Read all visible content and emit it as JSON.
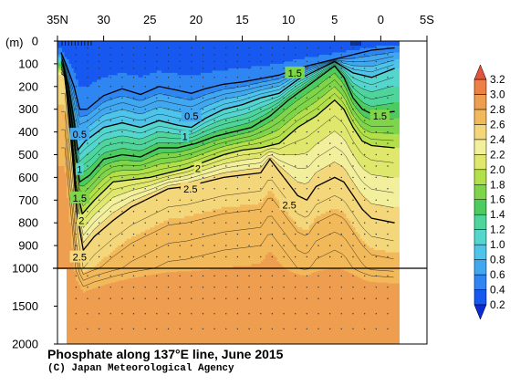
{
  "title": "Phosphate along 137°E line, June 2015",
  "credit": "(C) Japan Meteorological Agency",
  "depth_unit_label": "(m)",
  "colors": {
    "levels": [
      "#0a2ad2",
      "#1758f0",
      "#2f86f2",
      "#41a7f0",
      "#4fc4ea",
      "#54d6cf",
      "#4fd59c",
      "#4ccb5f",
      "#7fd54a",
      "#b3e04a",
      "#dfe86c",
      "#f2ef9d",
      "#f3d77a",
      "#f2b95b",
      "#ee9e4f",
      "#ec8045",
      "#e8683c",
      "#e4523a"
    ],
    "missing": "#ffffff"
  },
  "chart_data": {
    "type": "contour-section",
    "x_axis": {
      "ticks": [
        {
          "lat": 35,
          "label": "35N"
        },
        {
          "lat": 30,
          "label": "30"
        },
        {
          "lat": 25,
          "label": "25"
        },
        {
          "lat": 20,
          "label": "20"
        },
        {
          "lat": 15,
          "label": "15"
        },
        {
          "lat": 10,
          "label": "10"
        },
        {
          "lat": 5,
          "label": "5"
        },
        {
          "lat": 0,
          "label": "0"
        },
        {
          "lat": -5,
          "label": "5S"
        }
      ],
      "range_lat": [
        35,
        -5
      ]
    },
    "y_axis": {
      "upper_ticks": [
        {
          "depth": 0,
          "label": "0"
        },
        {
          "depth": 100,
          "label": "100"
        },
        {
          "depth": 200,
          "label": "200"
        },
        {
          "depth": 300,
          "label": "300"
        },
        {
          "depth": 400,
          "label": "400"
        },
        {
          "depth": 500,
          "label": "500"
        },
        {
          "depth": 600,
          "label": "600"
        },
        {
          "depth": 700,
          "label": "700"
        },
        {
          "depth": 800,
          "label": "800"
        },
        {
          "depth": 900,
          "label": "900"
        },
        {
          "depth": 1000,
          "label": "1000"
        }
      ],
      "lower_ticks": [
        {
          "depth": 1500,
          "label": "1500"
        },
        {
          "depth": 2000,
          "label": "2000"
        }
      ],
      "upper_range": [
        0,
        1000
      ],
      "lower_range": [
        1000,
        2000
      ]
    },
    "colorbar": {
      "labels": [
        "0.2",
        "0.4",
        "0.6",
        "0.8",
        "1.0",
        "1.2",
        "1.4",
        "1.6",
        "1.8",
        "2.0",
        "2.2",
        "2.4",
        "2.6",
        "2.8",
        "3.0",
        "3.2"
      ],
      "min": 0.2,
      "max": 3.2,
      "step": 0.2
    },
    "contour_labels": [
      {
        "text": "1.5",
        "lat": 9.3,
        "depth": 140
      },
      {
        "text": "1.5",
        "lat": 0.1,
        "depth": 330
      },
      {
        "text": "0.5",
        "lat": 20.5,
        "depth": 330
      },
      {
        "text": "1",
        "lat": 21.2,
        "depth": 420
      },
      {
        "text": "0.5",
        "lat": 32.6,
        "depth": 410
      },
      {
        "text": "1",
        "lat": 32.6,
        "depth": 565
      },
      {
        "text": "1.5",
        "lat": 32.6,
        "depth": 690
      },
      {
        "text": "2",
        "lat": 32.4,
        "depth": 790
      },
      {
        "text": "2.5",
        "lat": 32.6,
        "depth": 950
      },
      {
        "text": "2",
        "lat": 19.8,
        "depth": 560
      },
      {
        "text": "2.5",
        "lat": 20.6,
        "depth": 650
      },
      {
        "text": "2.5",
        "lat": 9.9,
        "depth": 720
      }
    ],
    "isolines": [
      {
        "value": 0.5,
        "points": [
          [
            34.6,
            50
          ],
          [
            34,
            110
          ],
          [
            33.2,
            200
          ],
          [
            32.6,
            300
          ],
          [
            31.8,
            300
          ],
          [
            30,
            240
          ],
          [
            28,
            210
          ],
          [
            26,
            235
          ],
          [
            24,
            200
          ],
          [
            22.2,
            215
          ],
          [
            20.5,
            230
          ],
          [
            19,
            210
          ],
          [
            17,
            190
          ],
          [
            15,
            180
          ],
          [
            13,
            165
          ],
          [
            11,
            150
          ],
          [
            9,
            120
          ],
          [
            7,
            100
          ],
          [
            5,
            80
          ],
          [
            3,
            60
          ],
          [
            1,
            40
          ],
          [
            -1.5,
            30
          ]
        ]
      },
      {
        "value": 1.0,
        "points": [
          [
            34.5,
            80
          ],
          [
            33.8,
            200
          ],
          [
            33.2,
            350
          ],
          [
            32.8,
            480
          ],
          [
            32,
            440
          ],
          [
            30,
            380
          ],
          [
            28,
            360
          ],
          [
            26,
            380
          ],
          [
            24,
            350
          ],
          [
            22,
            370
          ],
          [
            20.5,
            380
          ],
          [
            19,
            340
          ],
          [
            17,
            300
          ],
          [
            15,
            280
          ],
          [
            13,
            250
          ],
          [
            11,
            230
          ],
          [
            9,
            170
          ],
          [
            7,
            130
          ],
          [
            5,
            90
          ],
          [
            3,
            140
          ],
          [
            1,
            160
          ],
          [
            -1.5,
            120
          ]
        ]
      },
      {
        "value": 1.5,
        "points": [
          [
            34.4,
            100
          ],
          [
            33.6,
            300
          ],
          [
            33,
            500
          ],
          [
            32.6,
            620
          ],
          [
            31.5,
            590
          ],
          [
            30,
            520
          ],
          [
            28,
            500
          ],
          [
            26,
            510
          ],
          [
            24,
            470
          ],
          [
            22,
            470
          ],
          [
            20,
            450
          ],
          [
            18,
            420
          ],
          [
            16,
            400
          ],
          [
            14,
            380
          ],
          [
            12,
            330
          ],
          [
            10,
            260
          ],
          [
            8,
            200
          ],
          [
            6,
            140
          ],
          [
            5,
            110
          ],
          [
            4,
            160
          ],
          [
            3,
            250
          ],
          [
            2,
            300
          ],
          [
            1,
            320
          ],
          [
            -1.5,
            310
          ]
        ]
      },
      {
        "value": 2.0,
        "points": [
          [
            34.3,
            130
          ],
          [
            33.5,
            400
          ],
          [
            33,
            640
          ],
          [
            32.3,
            760
          ],
          [
            31,
            700
          ],
          [
            29,
            620
          ],
          [
            27,
            610
          ],
          [
            25,
            600
          ],
          [
            23,
            580
          ],
          [
            21,
            560
          ],
          [
            19,
            530
          ],
          [
            17,
            500
          ],
          [
            15,
            480
          ],
          [
            13,
            470
          ],
          [
            11,
            450
          ],
          [
            9,
            380
          ],
          [
            7,
            330
          ],
          [
            5,
            260
          ],
          [
            4,
            300
          ],
          [
            3,
            380
          ],
          [
            2,
            440
          ],
          [
            1,
            460
          ],
          [
            -1.5,
            470
          ]
        ]
      },
      {
        "value": 2.5,
        "points": [
          [
            34.2,
            150
          ],
          [
            33.4,
            500
          ],
          [
            32.9,
            760
          ],
          [
            32.2,
            920
          ],
          [
            31,
            860
          ],
          [
            29,
            790
          ],
          [
            27,
            730
          ],
          [
            25,
            690
          ],
          [
            23,
            650
          ],
          [
            21,
            640
          ],
          [
            19,
            620
          ],
          [
            17,
            600
          ],
          [
            15,
            590
          ],
          [
            13,
            580
          ],
          [
            12,
            520
          ],
          [
            10.5,
            600
          ],
          [
            9,
            680
          ],
          [
            8,
            700
          ],
          [
            7,
            640
          ],
          [
            5,
            600
          ],
          [
            4,
            620
          ],
          [
            3,
            680
          ],
          [
            2,
            740
          ],
          [
            1,
            780
          ],
          [
            -1.5,
            800
          ]
        ]
      }
    ]
  }
}
